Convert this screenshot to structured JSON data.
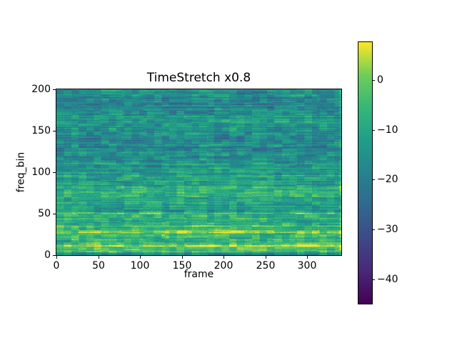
{
  "chart_data": {
    "type": "heatmap",
    "title": "TimeStretch x0.8",
    "xlabel": "frame",
    "ylabel": "freq_bin",
    "x_range": [
      0,
      341
    ],
    "y_range": [
      0,
      200
    ],
    "n_frames": 341,
    "n_bins": 201,
    "x_ticks": [
      0,
      50,
      100,
      150,
      200,
      250,
      300
    ],
    "x_tick_labels": [
      "0",
      "50",
      "100",
      "150",
      "200",
      "250",
      "300"
    ],
    "y_ticks": [
      0,
      50,
      100,
      150,
      200
    ],
    "y_tick_labels": [
      "0",
      "50",
      "100",
      "150",
      "200"
    ],
    "grid": false,
    "colormap": "viridis",
    "colormap_anchors": [
      {
        "t": 0.0,
        "hex": "#440154"
      },
      {
        "t": 0.125,
        "hex": "#482878"
      },
      {
        "t": 0.25,
        "hex": "#3e4989"
      },
      {
        "t": 0.375,
        "hex": "#31688e"
      },
      {
        "t": 0.5,
        "hex": "#26828e"
      },
      {
        "t": 0.625,
        "hex": "#1f9e89"
      },
      {
        "t": 0.75,
        "hex": "#35b779"
      },
      {
        "t": 0.875,
        "hex": "#6ece58"
      },
      {
        "t": 1.0,
        "hex": "#fde725"
      }
    ],
    "colorbar": {
      "vmin": -44.9,
      "vmax": 7.6,
      "ticks": [
        0,
        -10,
        -20,
        -30,
        -40
      ],
      "tick_labels": [
        "0",
        "−10",
        "−20",
        "−30",
        "−40"
      ],
      "position": "right"
    },
    "freq_profile_db_bands": [
      {
        "from": 0,
        "to": 2,
        "db": -18
      },
      {
        "from": 3,
        "to": 12,
        "db": -3
      },
      {
        "from": 13,
        "to": 20,
        "db": -7
      },
      {
        "from": 21,
        "to": 28,
        "db": -4
      },
      {
        "from": 29,
        "to": 38,
        "db": -7
      },
      {
        "from": 39,
        "to": 50,
        "db": -9
      },
      {
        "from": 51,
        "to": 62,
        "db": -13
      },
      {
        "from": 63,
        "to": 70,
        "db": -11
      },
      {
        "from": 71,
        "to": 82,
        "db": -7
      },
      {
        "from": 83,
        "to": 96,
        "db": -13
      },
      {
        "from": 97,
        "to": 112,
        "db": -14
      },
      {
        "from": 113,
        "to": 128,
        "db": -16
      },
      {
        "from": 129,
        "to": 154,
        "db": -17
      },
      {
        "from": 155,
        "to": 168,
        "db": -14
      },
      {
        "from": 169,
        "to": 200,
        "db": -17
      }
    ],
    "texture": {
      "seed": 42,
      "block_w": 9,
      "block_h": 5,
      "block_amp": 5,
      "segment_len": 26,
      "segment_amp": 4.5,
      "row_amp": 3.5,
      "fine_amp": 2.5,
      "bright_right_edge_frames": 2,
      "bright_right_edge_boost": 6
    }
  }
}
